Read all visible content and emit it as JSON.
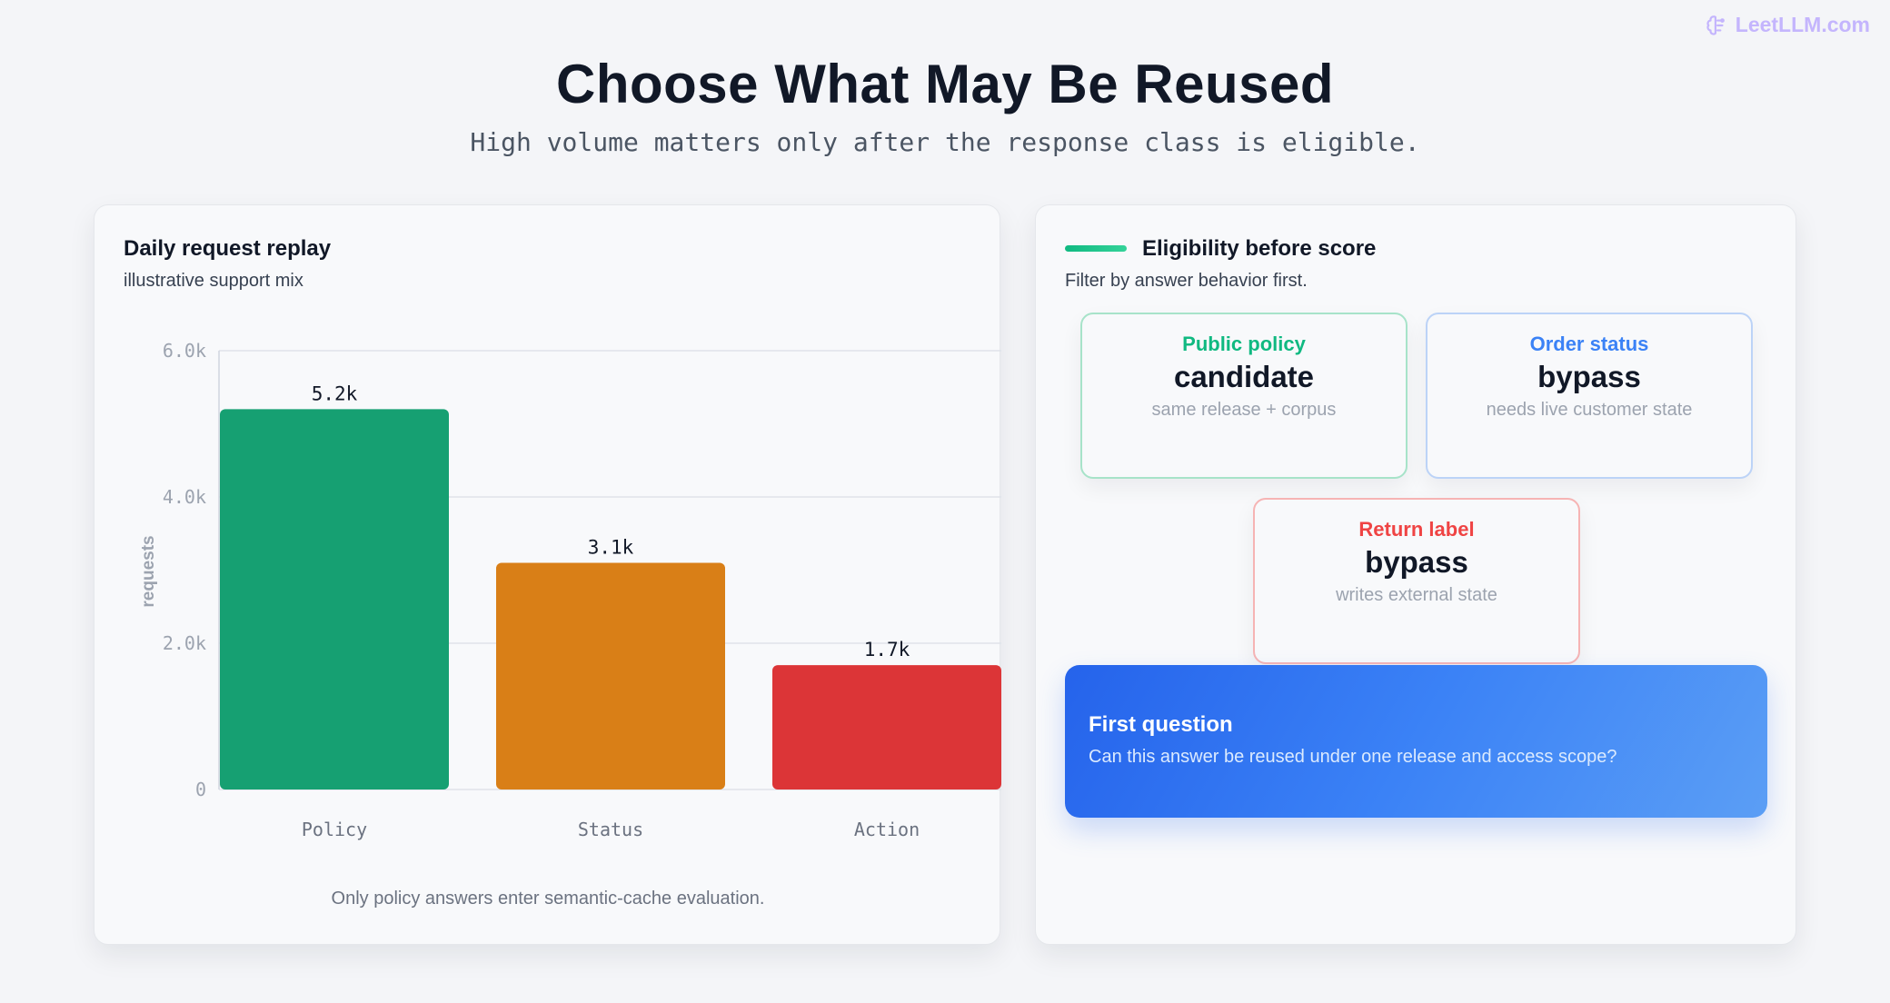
{
  "brand": {
    "text": "LeetLLM.com",
    "icon": "brain-icon",
    "color": "#c4b5fd"
  },
  "title": "Choose What May Be Reused",
  "subtitle": "High volume matters only after the response class is eligible.",
  "left_panel": {
    "title": "Daily request replay",
    "subtitle": "illustrative support mix",
    "footnote": "Only policy answers enter semantic-cache evaluation."
  },
  "chart_data": {
    "type": "bar",
    "categories": [
      "Policy",
      "Status",
      "Action"
    ],
    "values": [
      5200,
      3100,
      1700
    ],
    "value_labels": [
      "5.2k",
      "3.1k",
      "1.7k"
    ],
    "colors": [
      "#16a072",
      "#d97f17",
      "#dc3537"
    ],
    "ylabel": "requests",
    "ylim": [
      0,
      6000
    ],
    "yticks": [
      0,
      2000,
      4000,
      6000
    ],
    "ytick_labels": [
      "0",
      "2.0k",
      "4.0k",
      "6.0k"
    ],
    "grid": true,
    "legend": "none"
  },
  "right_panel": {
    "title": "Eligibility before score",
    "subtitle": "Filter by answer behavior first.",
    "tiles": [
      {
        "label": "Public policy",
        "value": "candidate",
        "note": "same release + corpus",
        "color": "#10b981"
      },
      {
        "label": "Order status",
        "value": "bypass",
        "note": "needs live customer state",
        "color": "#3b82f6"
      },
      {
        "label": "Return label",
        "value": "bypass",
        "note": "writes external state",
        "color": "#ef4444"
      }
    ],
    "question": {
      "title": "First question",
      "text": "Can this answer be reused under one release and access scope?"
    }
  }
}
